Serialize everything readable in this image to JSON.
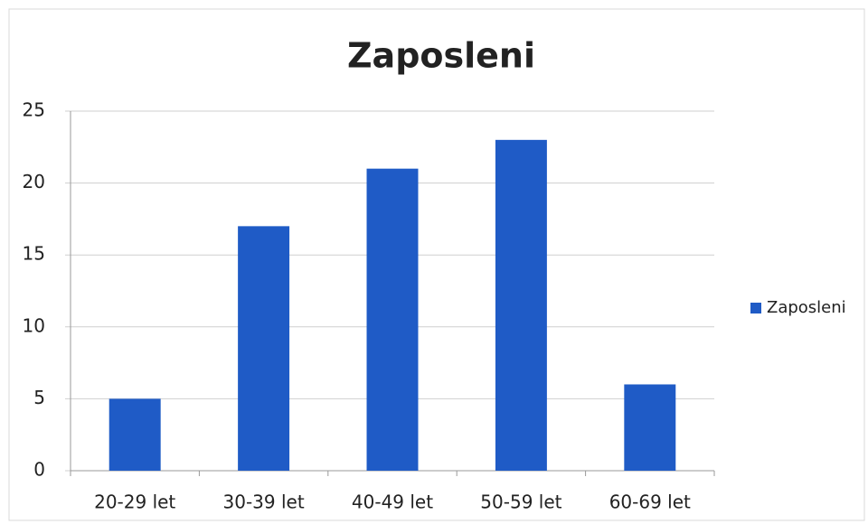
{
  "chart_data": {
    "type": "bar",
    "title": "Zaposleni",
    "categories": [
      "20-29 let",
      "30-39 let",
      "40-49 let",
      "50-59 let",
      "60-69 let"
    ],
    "series": [
      {
        "name": "Zaposleni",
        "color": "#1f5bc6",
        "values": [
          5,
          17,
          21,
          23,
          6
        ]
      }
    ],
    "ylim": [
      0,
      25
    ],
    "yticks": [
      0,
      5,
      10,
      15,
      20,
      25
    ],
    "grid": true,
    "legend": "right"
  }
}
